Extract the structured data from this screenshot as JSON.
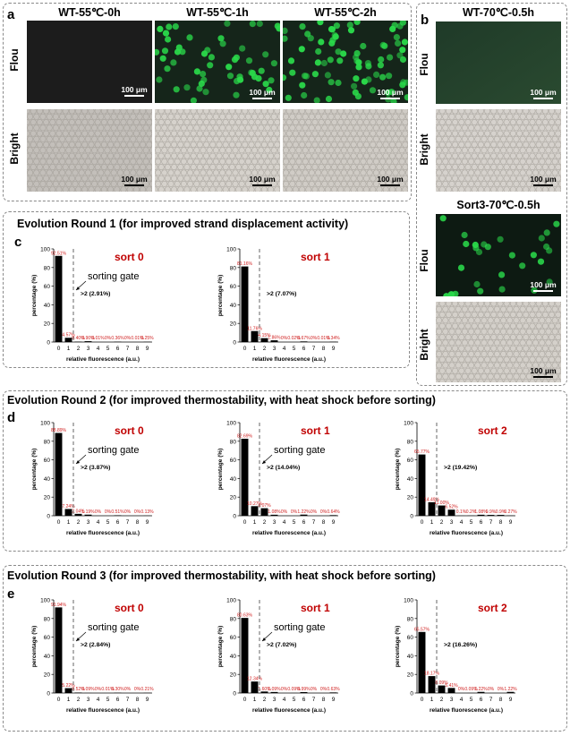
{
  "panel_a": {
    "label": "a",
    "columns": [
      "WT-55℃-0h",
      "WT-55℃-1h",
      "WT-55℃-2h"
    ],
    "rows": [
      "Flou",
      "Bright"
    ],
    "scale_bar": "100 μm"
  },
  "panel_b": {
    "label": "b",
    "top_title": "WT-70℃-0.5h",
    "bottom_title": "Sort3-70℃-0.5h",
    "rows": [
      "Flou",
      "Bright"
    ],
    "scale_bar": "100 μm"
  },
  "rounds": [
    {
      "title": "Evolution Round 1 (for improved strand displacement activity)",
      "label": "c"
    },
    {
      "title": "Evolution Round 2 (for improved thermostability, with heat shock before sorting)",
      "label": "d"
    },
    {
      "title": "Evolution Round 3 (for improved thermostability, with heat shock before sorting)",
      "label": "e"
    }
  ],
  "chart_data": [
    {
      "type": "bar",
      "round": 1,
      "title": "sort 0",
      "categories": [
        "0",
        "1",
        "2",
        "3",
        "4",
        "5",
        "6",
        "7",
        "8",
        "9"
      ],
      "values": [
        92.51,
        4.57,
        0.4,
        0.9,
        0.01,
        0,
        0.36,
        0,
        0.01,
        0.25
      ],
      "labels": [
        "92.51%",
        "4.57%",
        "0.40%",
        "0.90%",
        "0.01%",
        "0%",
        "0.36%",
        "0%",
        "0.01%",
        "0.25%"
      ],
      "xlabel": "relative fluorescence (a.u.)",
      "ylabel": "percentage (%)",
      "ylim": [
        0,
        100
      ],
      "yticks": [
        "0",
        "20",
        "40",
        "60",
        "80",
        "100"
      ],
      "gate_label": "sorting gate",
      "gate_text": ">2 (2.91%)"
    },
    {
      "type": "bar",
      "round": 1,
      "title": "sort 1",
      "categories": [
        "0",
        "1",
        "2",
        "3",
        "4",
        "5",
        "6",
        "7",
        "8",
        "9"
      ],
      "values": [
        81.16,
        11.76,
        4.15,
        1.86,
        0,
        0.02,
        0.67,
        0,
        0.01,
        0.34
      ],
      "labels": [
        "81.16%",
        "11.76%",
        "4.15%",
        "1.86%",
        "0%",
        "0.02%",
        "0.67%",
        "0%",
        "0.01%",
        "0.34%"
      ],
      "xlabel": "relative fluorescence (a.u.)",
      "ylabel": "percentage (%)",
      "ylim": [
        0,
        100
      ],
      "yticks": [
        "0",
        "20",
        "40",
        "60",
        "80",
        "100"
      ],
      "gate_label": "",
      "gate_text": ">2 (7.07%)"
    },
    {
      "type": "bar",
      "round": 2,
      "title": "sort 0",
      "categories": [
        "0",
        "1",
        "2",
        "3",
        "4",
        "5",
        "6",
        "7",
        "8",
        "9"
      ],
      "values": [
        88.89,
        7.24,
        2.04,
        1.19,
        0,
        0,
        0.51,
        0,
        0,
        0.13
      ],
      "labels": [
        "88.89%",
        "7.24%",
        "2.04%",
        "1.19%",
        "0%",
        "0%",
        "0.51%",
        "0%",
        "0%",
        "0.13%"
      ],
      "xlabel": "relative fluorescence (a.u.)",
      "ylabel": "percentage (%)",
      "ylim": [
        0,
        100
      ],
      "yticks": [
        "0",
        "20",
        "40",
        "60",
        "80",
        "100"
      ],
      "gate_label": "sorting gate",
      "gate_text": ">2 (3.87%)"
    },
    {
      "type": "bar",
      "round": 2,
      "title": "sort 1",
      "categories": [
        "0",
        "1",
        "2",
        "3",
        "4",
        "5",
        "6",
        "7",
        "8",
        "9"
      ],
      "values": [
        82.69,
        10.27,
        8.07,
        1.08,
        0,
        0,
        1.22,
        0,
        0,
        0.64
      ],
      "labels": [
        "82.69%",
        "10.27%",
        "8.07%",
        "1.08%",
        "0%",
        "0%",
        "1.22%",
        "0%",
        "0%",
        "0.64%"
      ],
      "xlabel": "relative fluorescence (a.u.)",
      "ylabel": "percentage (%)",
      "ylim": [
        0,
        100
      ],
      "yticks": [
        "0",
        "20",
        "40",
        "60",
        "80",
        "100"
      ],
      "gate_label": "sorting gate",
      "gate_text": ">2 (14.04%)"
    },
    {
      "type": "bar",
      "round": 2,
      "title": "sort 2",
      "categories": [
        "0",
        "1",
        "2",
        "3",
        "4",
        "5",
        "6",
        "7",
        "8",
        "9"
      ],
      "values": [
        65.77,
        14.49,
        11.0,
        6.52,
        0.1,
        0.2,
        1.08,
        0.9,
        0.9,
        0.27
      ],
      "labels": [
        "65.77%",
        "14.49%",
        "11.00%",
        "6.52%",
        "0.1%",
        "0.2%",
        "1.08%",
        "0.9%",
        "0.9%",
        "0.27%"
      ],
      "xlabel": "relative fluorescence (a.u.)",
      "ylabel": "percentage (%)",
      "ylim": [
        0,
        100
      ],
      "yticks": [
        "0",
        "20",
        "40",
        "60",
        "80",
        "100"
      ],
      "gate_label": "",
      "gate_text": ">2 (19.42%)"
    },
    {
      "type": "bar",
      "round": 3,
      "title": "sort 0",
      "categories": [
        "0",
        "1",
        "2",
        "3",
        "4",
        "5",
        "6",
        "7",
        "8",
        "9"
      ],
      "values": [
        91.94,
        5.22,
        0.52,
        0.09,
        0,
        0.01,
        0.3,
        0,
        0,
        0.21
      ],
      "labels": [
        "91.94%",
        "5.22%",
        "0.52%",
        "0.09%",
        "0%",
        "0.01%",
        "0.30%",
        "0%",
        "0%",
        "0.21%"
      ],
      "xlabel": "relative fluorescence (a.u.)",
      "ylabel": "percentage (%)",
      "ylim": [
        0,
        100
      ],
      "yticks": [
        "0",
        "20",
        "40",
        "60",
        "80",
        "100"
      ],
      "gate_label": "sorting gate",
      "gate_text": ">2 (2.84%)"
    },
    {
      "type": "bar",
      "round": 3,
      "title": "sort 1",
      "categories": [
        "0",
        "1",
        "2",
        "3",
        "4",
        "5",
        "6",
        "7",
        "8",
        "9"
      ],
      "values": [
        80.63,
        12.34,
        1.6,
        1.09,
        0,
        0.09,
        0.99,
        0,
        0,
        0.63
      ],
      "labels": [
        "80.63%",
        "12.34%",
        "1.60%",
        "1.09%",
        "0%",
        "0.09%",
        "0.99%",
        "0%",
        "0%",
        "0.63%"
      ],
      "xlabel": "relative fluorescence (a.u.)",
      "ylabel": "percentage (%)",
      "ylim": [
        0,
        100
      ],
      "yticks": [
        "0",
        "20",
        "40",
        "60",
        "80",
        "100"
      ],
      "gate_label": "sorting gate",
      "gate_text": ">2 (7.02%)"
    },
    {
      "type": "bar",
      "round": 3,
      "title": "sort 2",
      "categories": [
        "0",
        "1",
        "2",
        "3",
        "4",
        "5",
        "6",
        "7",
        "8",
        "9"
      ],
      "values": [
        65.57,
        18.17,
        8.09,
        5.41,
        0,
        0.09,
        1.22,
        0,
        0,
        1.22
      ],
      "labels": [
        "65.57%",
        "18.17%",
        "8.09%",
        "5.41%",
        "0%",
        "0.09%",
        "1.22%",
        "0%",
        "0%",
        "1.22%"
      ],
      "xlabel": "relative fluorescence (a.u.)",
      "ylabel": "percentage (%)",
      "ylim": [
        0,
        100
      ],
      "yticks": [
        "0",
        "20",
        "40",
        "60",
        "80",
        "100"
      ],
      "gate_label": "",
      "gate_text": ">2 (16.26%)"
    }
  ],
  "colors": {
    "title_red": "#c00000",
    "label_red": "#d02020",
    "bar": "#000000",
    "fluor_green": "#2ad94a",
    "bright_bg": "#cfcac4"
  }
}
